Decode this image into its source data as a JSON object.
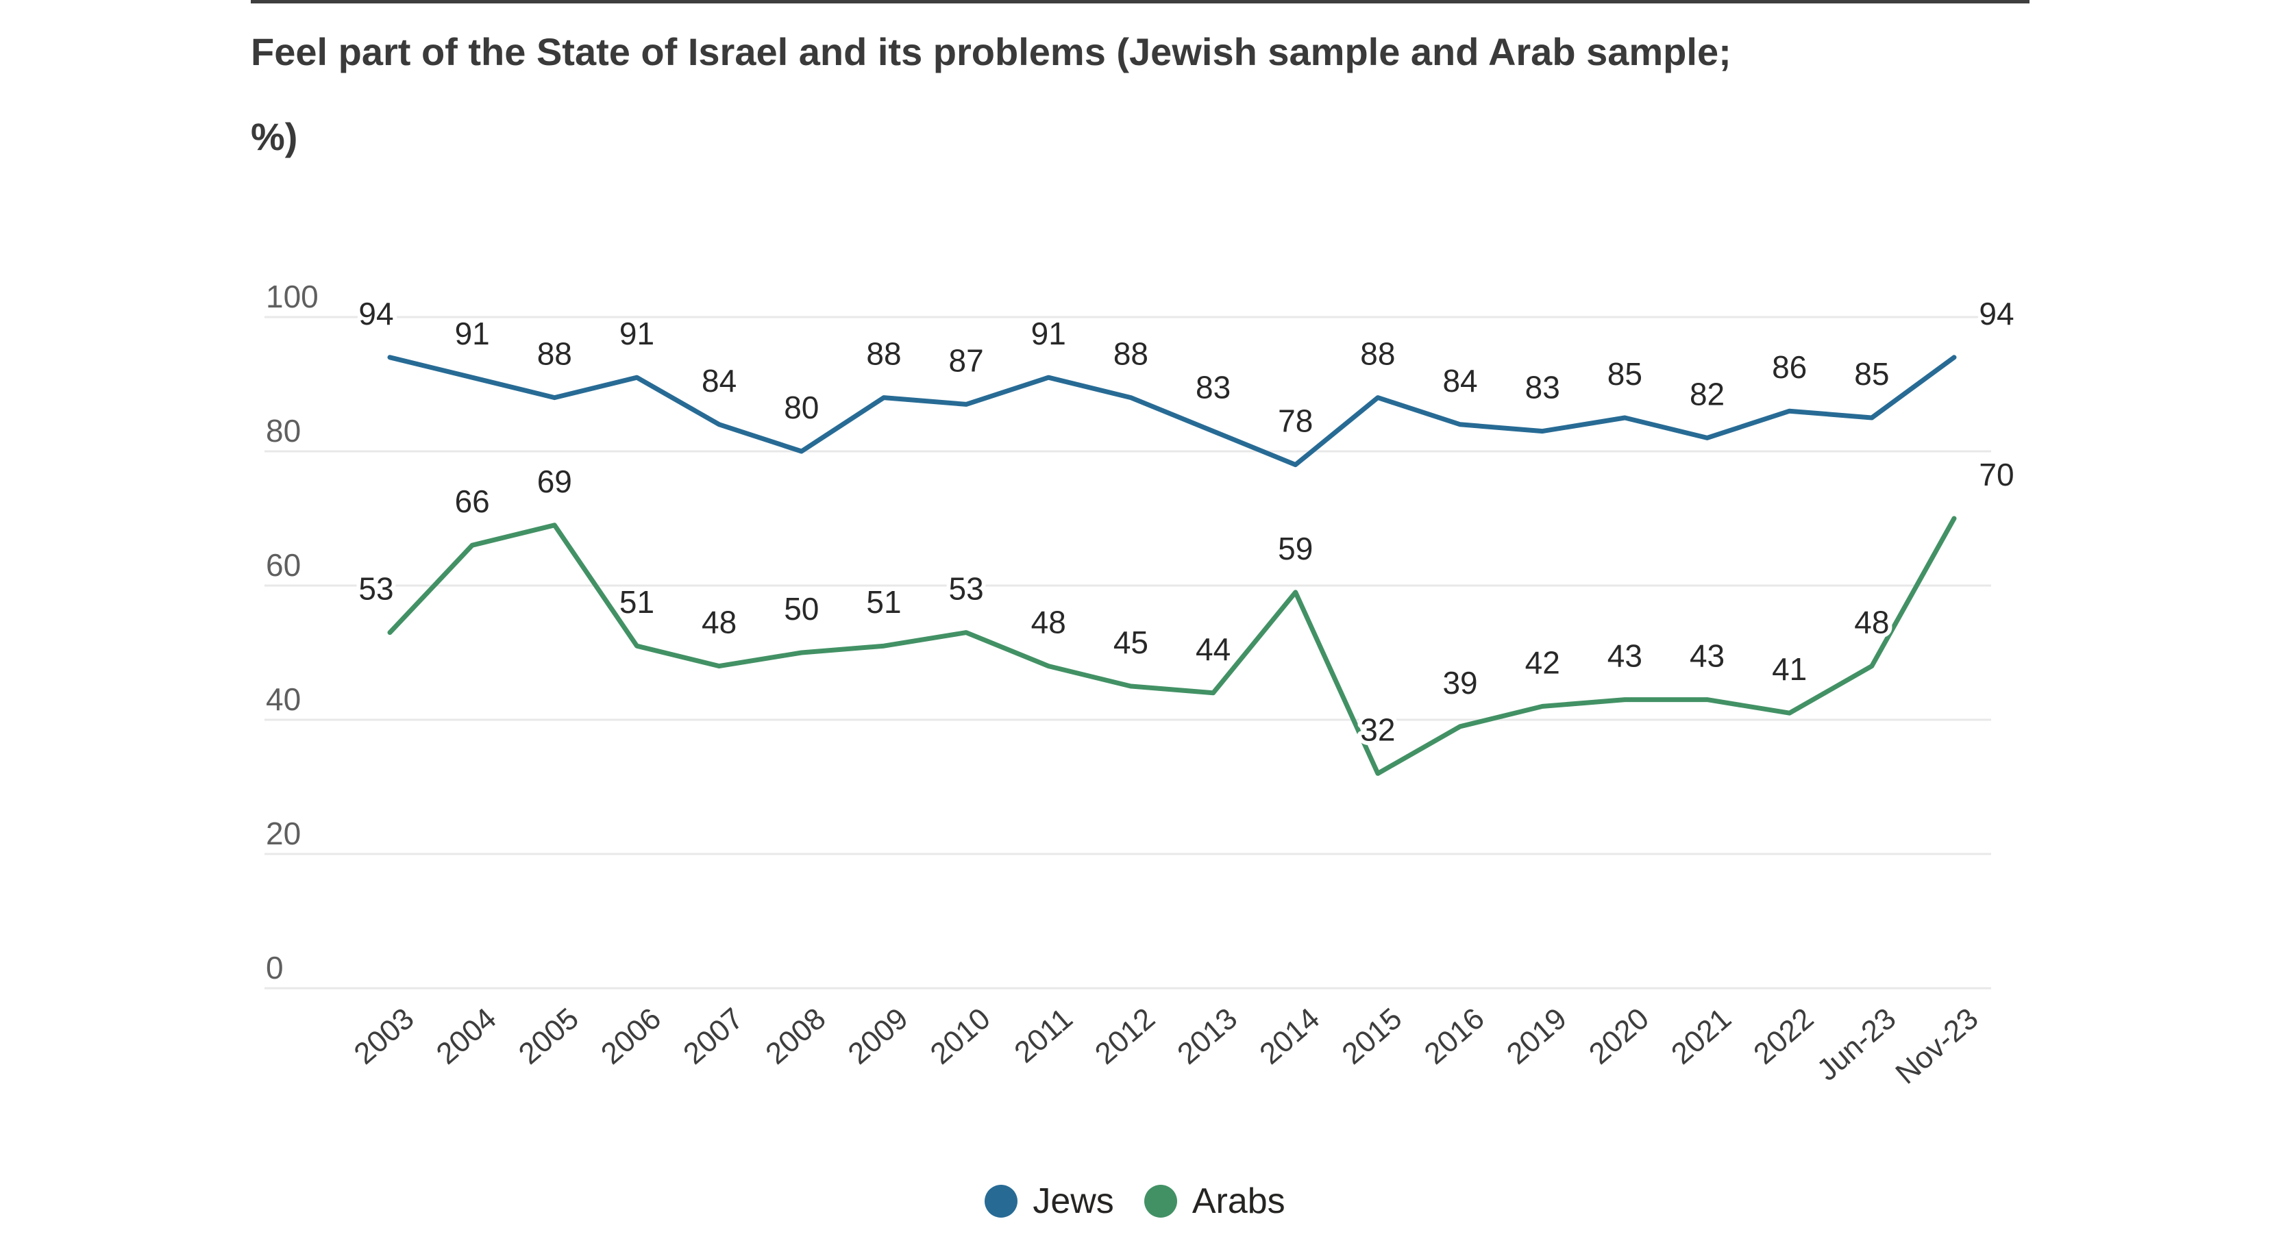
{
  "title": {
    "line1": "Feel part of the State of Israel and its problems (Jewish sample and Arab sample;",
    "line2": "%)"
  },
  "colors": {
    "jews": "#276b95",
    "arabs": "#429165",
    "gridline": "#e8e8e8",
    "title_text": "#3a3a3a",
    "y_axis_text": "#5f5f5f",
    "x_axis_text": "#3d3d3d",
    "data_label_text": "#282828",
    "legend_text": "#252423",
    "background": "#ffffff",
    "top_rule": "#3f3f3f"
  },
  "legend": {
    "items": [
      {
        "label": "Jews",
        "series": "jews"
      },
      {
        "label": "Arabs",
        "series": "arabs"
      }
    ]
  },
  "chart_data": {
    "type": "line",
    "title": "Feel part of the State of Israel and its problems (Jewish sample and Arab sample; %)",
    "categories": [
      "2003",
      "2004",
      "2005",
      "2006",
      "2007",
      "2008",
      "2009",
      "2010",
      "2011",
      "2012",
      "2013",
      "2014",
      "2015",
      "2016",
      "2019",
      "2020",
      "2021",
      "2022",
      "Jun-23",
      "Nov-23"
    ],
    "series": [
      {
        "name": "Jews",
        "color": "#276b95",
        "values": [
          94,
          91,
          88,
          91,
          84,
          80,
          88,
          87,
          91,
          88,
          83,
          78,
          88,
          84,
          83,
          85,
          82,
          86,
          85,
          94
        ]
      },
      {
        "name": "Arabs",
        "color": "#429165",
        "values": [
          53,
          66,
          69,
          51,
          48,
          50,
          51,
          53,
          48,
          45,
          44,
          59,
          32,
          39,
          42,
          43,
          43,
          41,
          48,
          70
        ]
      }
    ],
    "ylim": [
      0,
      100
    ],
    "yticks": [
      0,
      20,
      40,
      60,
      80,
      100
    ],
    "grid": true,
    "data_labels": true,
    "x_tick_rotation": -41,
    "legend_position": "bottom"
  }
}
